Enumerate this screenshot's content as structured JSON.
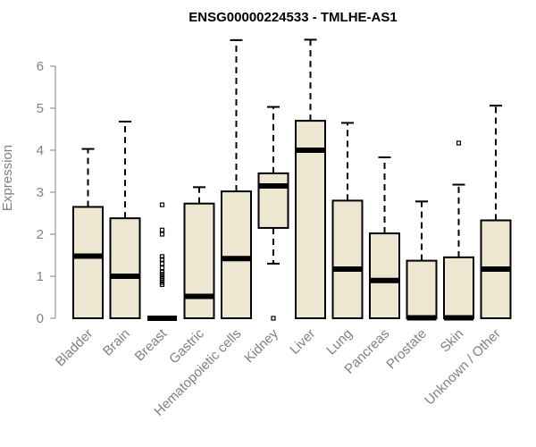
{
  "chart_data": {
    "type": "boxplot",
    "title": "ENSG00000224533 - TMLHE-AS1",
    "ylabel": "Expression",
    "xlabel": "",
    "ylim": [
      0,
      6.7
    ],
    "yticks": [
      0,
      1,
      2,
      3,
      4,
      5,
      6
    ],
    "grid": false,
    "legend": "none",
    "box_fill": "#ede6d0",
    "box_stroke": "#000000",
    "axis_color": "#808080",
    "categories": [
      "Bladder",
      "Brain",
      "Breast",
      "Gastric",
      "Hematopoietic cells",
      "Kidney",
      "Liver",
      "Lung",
      "Pancreas",
      "Prostate",
      "Skin",
      "Unknown / Other"
    ],
    "boxes": [
      {
        "min": 0,
        "q1": 0,
        "median": 1.48,
        "q3": 2.65,
        "max": 4.03,
        "outliers": []
      },
      {
        "min": 0,
        "q1": 0,
        "median": 1.0,
        "q3": 2.38,
        "max": 4.68,
        "outliers": []
      },
      {
        "min": 0,
        "q1": 0,
        "median": 0,
        "q3": 0,
        "max": 0,
        "outliers": [
          0.8,
          0.85,
          0.9,
          0.95,
          1.0,
          1.05,
          1.1,
          1.2,
          1.3,
          1.4,
          1.47,
          2.0,
          2.1,
          2.7
        ]
      },
      {
        "min": 0,
        "q1": 0,
        "median": 0.52,
        "q3": 2.73,
        "max": 3.12,
        "outliers": []
      },
      {
        "min": 0,
        "q1": 0,
        "median": 1.42,
        "q3": 3.02,
        "max": 6.62,
        "outliers": []
      },
      {
        "min": 1.3,
        "q1": 2.15,
        "median": 3.15,
        "q3": 3.45,
        "max": 5.03,
        "outliers": [
          0
        ]
      },
      {
        "min": 0,
        "q1": 0,
        "median": 4.0,
        "q3": 4.7,
        "max": 6.63,
        "outliers": []
      },
      {
        "min": 0,
        "q1": 0,
        "median": 1.17,
        "q3": 2.8,
        "max": 4.65,
        "outliers": []
      },
      {
        "min": 0,
        "q1": 0,
        "median": 0.9,
        "q3": 2.02,
        "max": 3.83,
        "outliers": []
      },
      {
        "min": 0,
        "q1": 0,
        "median": 0.01,
        "q3": 1.37,
        "max": 2.78,
        "outliers": []
      },
      {
        "min": 0,
        "q1": 0,
        "median": 0.01,
        "q3": 1.45,
        "max": 3.18,
        "outliers": [
          4.17
        ]
      },
      {
        "min": 0,
        "q1": 0,
        "median": 1.17,
        "q3": 2.33,
        "max": 5.06,
        "outliers": []
      }
    ]
  }
}
